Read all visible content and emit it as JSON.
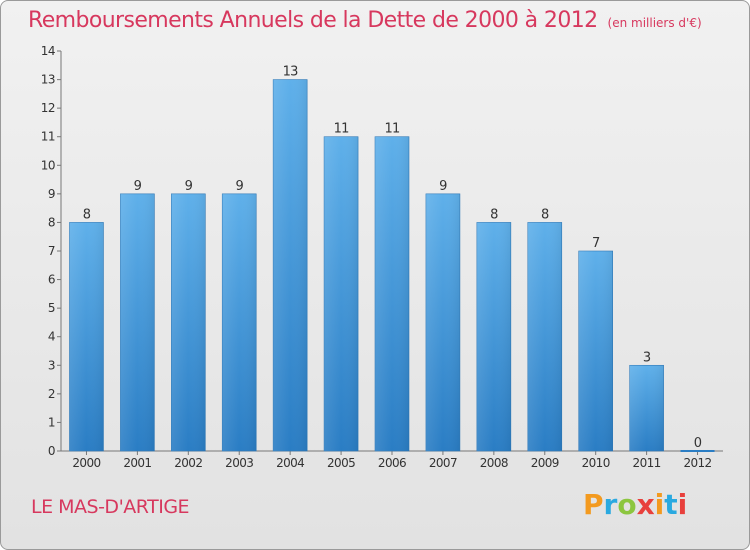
{
  "header": {
    "title": "Remboursements Annuels de la Dette de 2000 à 2012",
    "subtitle": "(en milliers d'€)"
  },
  "footer": {
    "commune": "LE MAS-D'ARTIGE",
    "brand": "Proxiti",
    "brand_colors": [
      "#f39a1f",
      "#2aa9e0",
      "#8cc63f",
      "#e8403c",
      "#f39a1f",
      "#2aa9e0",
      "#e8403c"
    ]
  },
  "colors": {
    "title": "#d7385e",
    "bar_top": "#5fb0ea",
    "bar_bottom": "#2a7dc4"
  },
  "chart_data": {
    "type": "bar",
    "title": "Remboursements Annuels de la Dette de 2000 à 2012",
    "xlabel": "",
    "ylabel": "",
    "categories": [
      "2000",
      "2001",
      "2002",
      "2003",
      "2004",
      "2005",
      "2006",
      "2007",
      "2008",
      "2009",
      "2010",
      "2011",
      "2012"
    ],
    "values": [
      8,
      9,
      9,
      9,
      13,
      11,
      11,
      9,
      8,
      8,
      7,
      3,
      0
    ],
    "ylim": [
      0,
      14
    ],
    "yticks": [
      "0",
      "1",
      "2",
      "3",
      "4",
      "5",
      "6",
      "7",
      "8",
      "9",
      "10",
      "11",
      "12",
      "13",
      "14"
    ],
    "grid": false
  }
}
